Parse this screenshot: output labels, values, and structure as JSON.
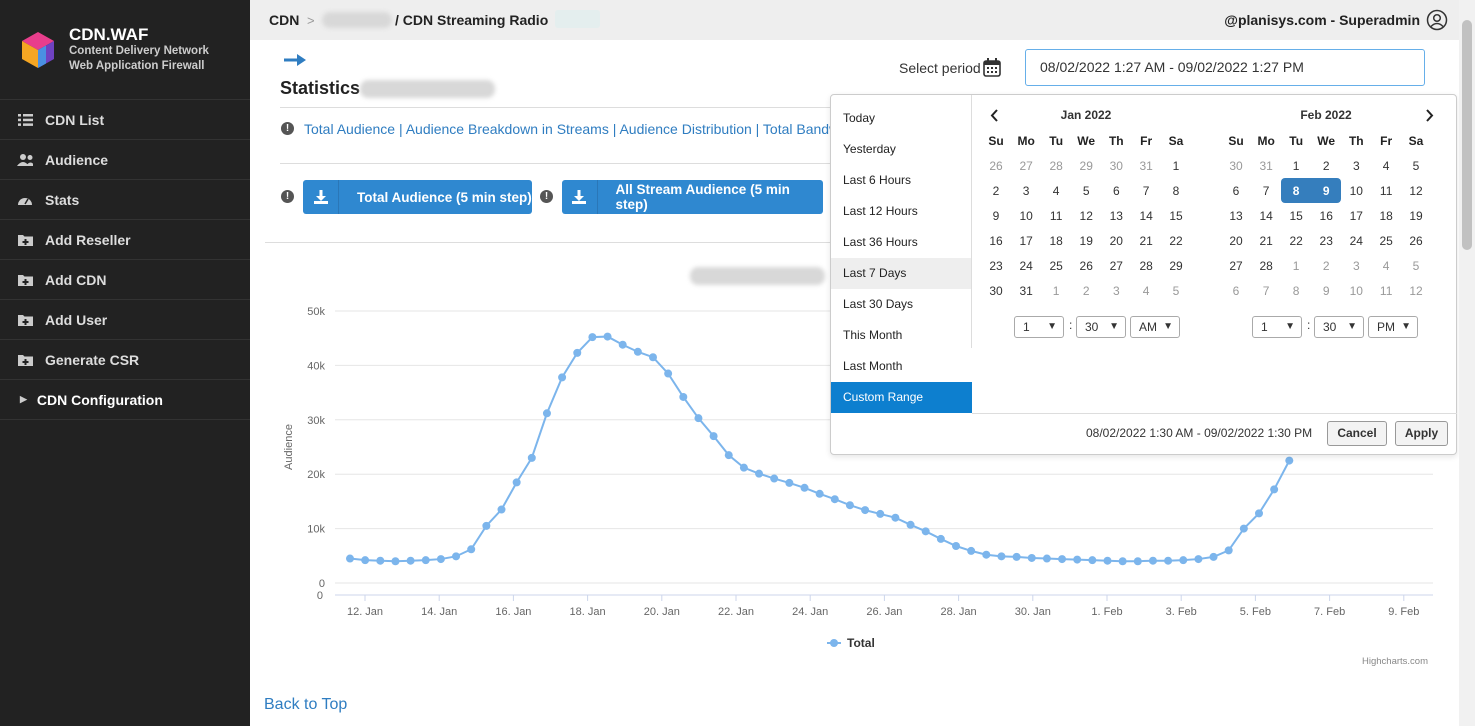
{
  "sidebar": {
    "brand_title": "CDN.WAF",
    "brand_sub1": "Content Delivery Network",
    "brand_sub2": "Web Application Firewall",
    "items": [
      {
        "label": "CDN List"
      },
      {
        "label": "Audience"
      },
      {
        "label": "Stats"
      },
      {
        "label": "Add Reseller"
      },
      {
        "label": "Add CDN"
      },
      {
        "label": "Add User"
      },
      {
        "label": "Generate CSR"
      },
      {
        "label": "CDN Configuration"
      }
    ]
  },
  "topbar": {
    "crumb_root": "CDN",
    "crumb_sep": ">",
    "crumb_current": "/ CDN Streaming Radio",
    "user": "@planisys.com - Superadmin"
  },
  "main": {
    "arrow": "→",
    "title": "Statistics",
    "links": "Total Audience | Audience Breakdown in Streams | Audience Distribution | Total Bandw",
    "btn1": "Total Audience (5 min step)",
    "btn2": "All Stream Audience (5 min step)",
    "select_period": "Select period",
    "period_value": "08/02/2022 1:27 AM - 09/02/2022 1:27 PM",
    "back_to_top": "Back to Top",
    "credit": "Highcharts.com",
    "legend": "Total"
  },
  "picker": {
    "ranges": [
      "Today",
      "Yesterday",
      "Last 6 Hours",
      "Last 12 Hours",
      "Last 36 Hours",
      "Last 7 Days",
      "Last 30 Days",
      "This Month",
      "Last Month",
      "Custom Range"
    ],
    "left_month": "Jan 2022",
    "right_month": "Feb 2022",
    "weekdays": [
      "Su",
      "Mo",
      "Tu",
      "We",
      "Th",
      "Fr",
      "Sa"
    ],
    "left_days": [
      [
        "26",
        "27",
        "28",
        "29",
        "30",
        "31",
        "1"
      ],
      [
        "2",
        "3",
        "4",
        "5",
        "6",
        "7",
        "8"
      ],
      [
        "9",
        "10",
        "11",
        "12",
        "13",
        "14",
        "15"
      ],
      [
        "16",
        "17",
        "18",
        "19",
        "20",
        "21",
        "22"
      ],
      [
        "23",
        "24",
        "25",
        "26",
        "27",
        "28",
        "29"
      ],
      [
        "30",
        "31",
        "1",
        "2",
        "3",
        "4",
        "5"
      ]
    ],
    "right_days": [
      [
        "30",
        "31",
        "1",
        "2",
        "3",
        "4",
        "5"
      ],
      [
        "6",
        "7",
        "8",
        "9",
        "10",
        "11",
        "12"
      ],
      [
        "13",
        "14",
        "15",
        "16",
        "17",
        "18",
        "19"
      ],
      [
        "20",
        "21",
        "22",
        "23",
        "24",
        "25",
        "26"
      ],
      [
        "27",
        "28",
        "1",
        "2",
        "3",
        "4",
        "5"
      ],
      [
        "6",
        "7",
        "8",
        "9",
        "10",
        "11",
        "12"
      ]
    ],
    "left_time": {
      "hour": "1",
      "minute": "30",
      "ampm": "AM"
    },
    "right_time": {
      "hour": "1",
      "minute": "30",
      "ampm": "PM"
    },
    "range_text": "08/02/2022 1:30 AM - 09/02/2022 1:30 PM",
    "cancel": "Cancel",
    "apply": "Apply"
  },
  "chart_data": {
    "type": "line",
    "ylabel": "Audience",
    "ylim": [
      0,
      50000
    ],
    "y_ticks": [
      "0",
      "10k",
      "20k",
      "30k",
      "40k",
      "50k"
    ],
    "x_ticks": [
      "12. Jan",
      "14. Jan",
      "16. Jan",
      "18. Jan",
      "20. Jan",
      "22. Jan",
      "24. Jan",
      "26. Jan",
      "28. Jan",
      "30. Jan",
      "1. Feb",
      "3. Feb",
      "5. Feb",
      "7. Feb",
      "9. Feb"
    ],
    "series": [
      {
        "name": "Total",
        "color": "#7cb5ec",
        "values": [
          4500,
          4200,
          4100,
          4000,
          4100,
          4200,
          4400,
          4900,
          6200,
          10500,
          13500,
          18500,
          23000,
          31200,
          37800,
          42300,
          45200,
          45300,
          43800,
          42500,
          41500,
          38500,
          34200,
          30300,
          27000,
          23500,
          21200,
          20100,
          19200,
          18400,
          17500,
          16400,
          15400,
          14300,
          13400,
          12700,
          12000,
          10700,
          9500,
          8100,
          6800,
          5900,
          5200,
          4900,
          4800,
          4600,
          4500,
          4400,
          4300,
          4200,
          4100,
          4000,
          4000,
          4100,
          4100,
          4200,
          4400,
          4800,
          6000,
          10000,
          12800,
          17200,
          22500
        ]
      }
    ]
  }
}
